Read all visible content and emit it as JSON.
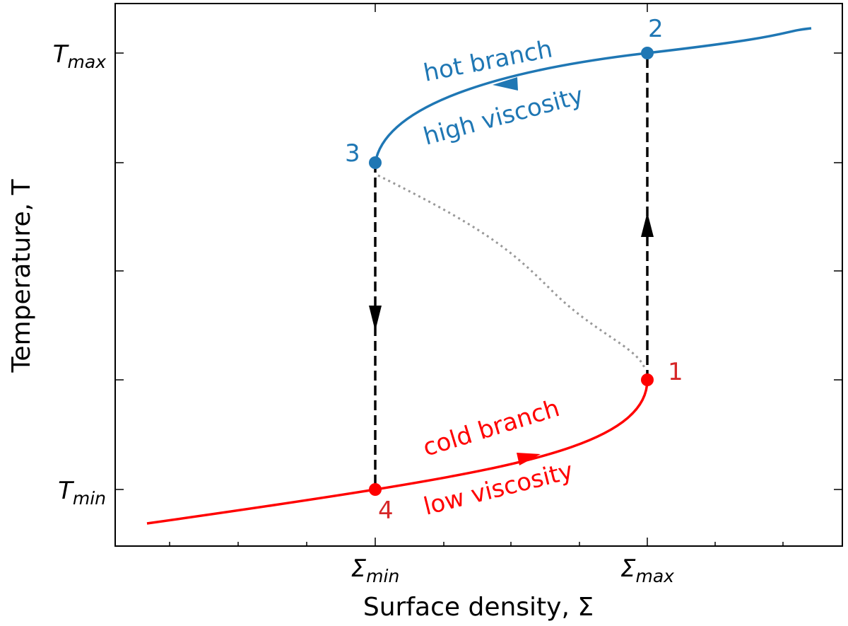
{
  "title_axes": {
    "x_label": "Surface density, Σ",
    "y_label": "Temperature, T"
  },
  "y_ticks": [
    {
      "symbol": "T",
      "sub": "max"
    },
    {
      "symbol": "T",
      "sub": "min"
    }
  ],
  "x_ticks": [
    {
      "symbol": "Σ",
      "sub": "min"
    },
    {
      "symbol": "Σ",
      "sub": "max"
    }
  ],
  "annotations": {
    "hot_branch": "hot branch",
    "high_viscosity": "high viscosity",
    "cold_branch": "cold branch",
    "low_viscosity": "low viscosity"
  },
  "points": [
    "1",
    "2",
    "3",
    "4"
  ]
}
